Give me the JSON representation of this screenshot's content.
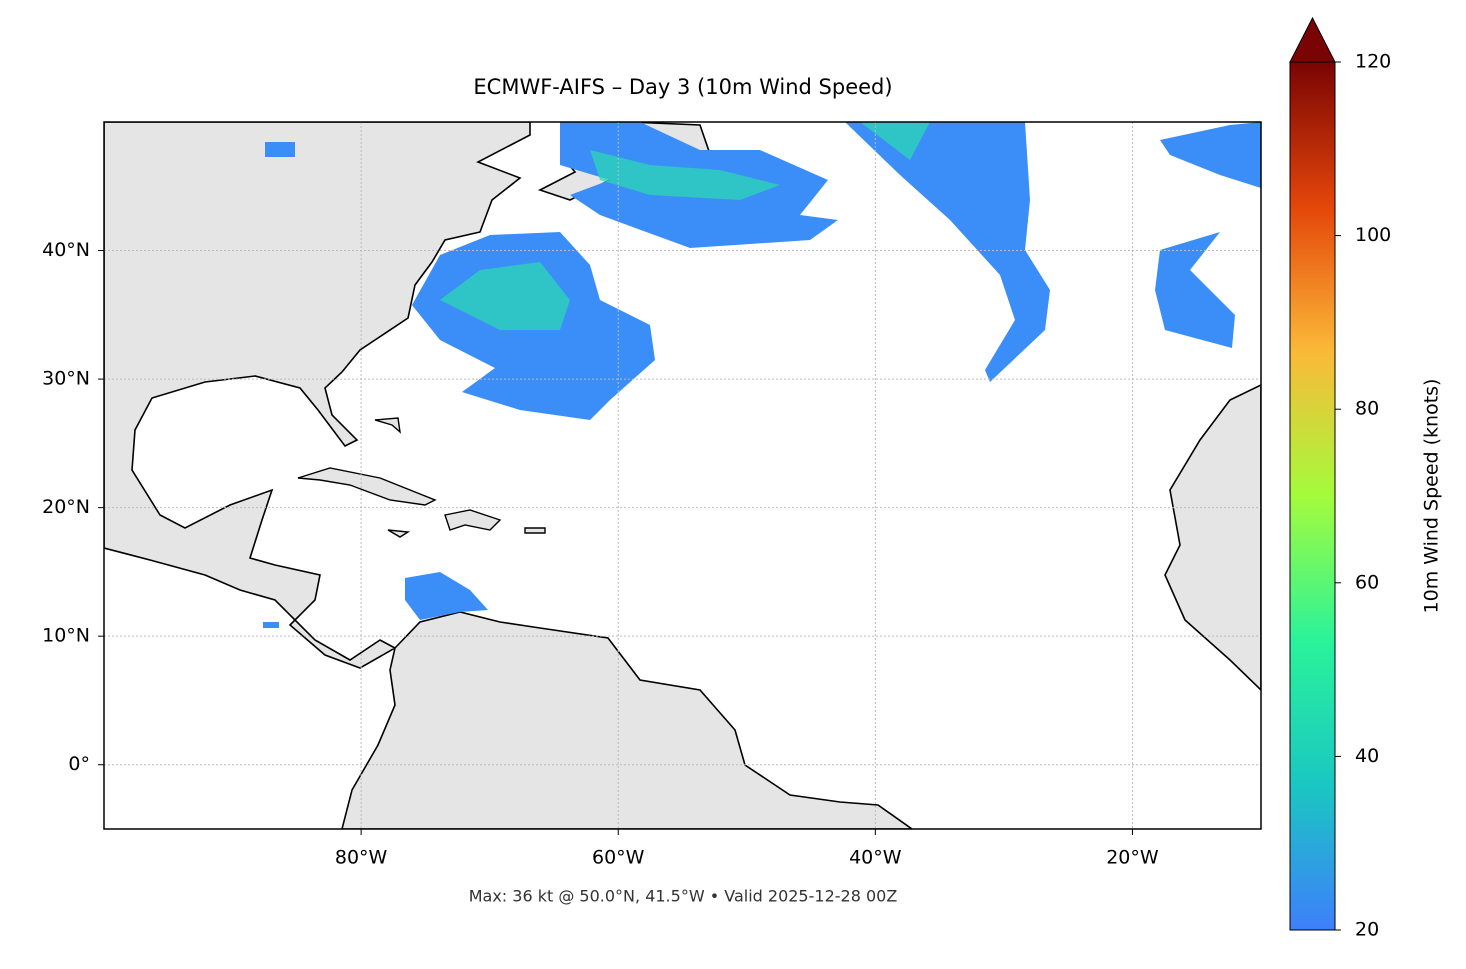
{
  "chart_data": {
    "type": "map",
    "title": "ECMWF-AIFS – Day 3 (10m Wind Speed)",
    "xlim": [
      -100,
      -10
    ],
    "ylim": [
      -5,
      50
    ],
    "xticks": [
      {
        "value": -80,
        "label": "80°W"
      },
      {
        "value": -60,
        "label": "60°W"
      },
      {
        "value": -40,
        "label": "40°W"
      },
      {
        "value": -20,
        "label": "20°W"
      }
    ],
    "yticks": [
      {
        "value": 0,
        "label": "0°"
      },
      {
        "value": 10,
        "label": "10°N"
      },
      {
        "value": 20,
        "label": "20°N"
      },
      {
        "value": 30,
        "label": "30°N"
      },
      {
        "value": 40,
        "label": "40°N"
      }
    ],
    "grid": true,
    "colorbar": {
      "label": "10m Wind Speed (knots)",
      "lim": [
        20,
        120
      ],
      "ticks": [
        20,
        40,
        60,
        80,
        100,
        120
      ],
      "colors": [
        "#3e7ffb",
        "#1ac7c2",
        "#2af39a",
        "#a4fb3c",
        "#fbb938",
        "#e4460a",
        "#7a0403"
      ],
      "extend": "max"
    },
    "footnote": "Max: 36 kt @ 50.0°N, 41.5°W • Valid 2025-12-28 00Z"
  }
}
